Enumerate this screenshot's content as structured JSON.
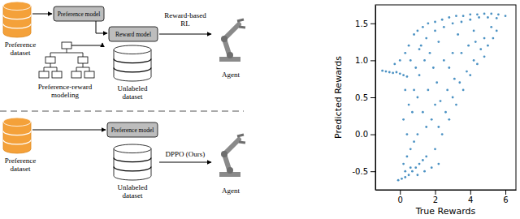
{
  "diagram": {
    "top": {
      "preference_dataset": [
        "Preference",
        "dataset"
      ],
      "preference_model": "Preference model",
      "reward_model": "Reward model",
      "modeling": [
        "Preference-reward",
        "modeling"
      ],
      "unlabeled_dataset": [
        "Unlabeled",
        "dataset"
      ],
      "method": [
        "Reward-based",
        "RL"
      ],
      "agent": "Agent"
    },
    "bottom": {
      "preference_dataset": [
        "Preference",
        "dataset"
      ],
      "preference_model": "Preference model",
      "unlabeled_dataset": [
        "Unlabeled",
        "dataset"
      ],
      "method": "DPPO (Ours)",
      "agent": "Agent"
    }
  },
  "chart_data": {
    "type": "scatter",
    "xlabel": "True Rewards",
    "ylabel": "Predicted Rewards",
    "color": "#1f77b4",
    "marker": "circle",
    "xlim": [
      -1.4,
      6.6
    ],
    "ylim": [
      -0.75,
      1.75
    ],
    "xticks": [
      0,
      2,
      4,
      6
    ],
    "yticks": [
      -0.5,
      {
        "value": 0,
        "label": "0.0"
      },
      0.5,
      {
        "value": 1,
        "label": "1.0"
      },
      1.5
    ],
    "x": [
      -1.0,
      -0.8,
      -0.6,
      -0.4,
      -0.2,
      0.0,
      0.2,
      0.4,
      -0.1,
      0.1,
      0.3,
      0.5,
      0.7,
      0.9,
      1.1,
      1.3,
      1.5,
      0.2,
      0.4,
      0.6,
      0.8,
      1.0,
      0.3,
      0.6,
      1.0,
      1.4,
      1.8,
      2.2,
      2.0,
      2.4,
      2.8,
      3.2,
      3.6,
      4.0,
      4.4,
      4.8,
      2.2,
      2.6,
      3.0,
      3.4,
      3.8,
      4.2,
      1.8,
      2.3,
      2.7,
      3.1,
      0.2,
      0.5,
      0.8,
      1.1,
      1.4,
      0.4,
      0.7,
      1.0,
      1.3,
      1.6,
      1.9,
      2.1,
      1.2,
      0.9,
      1.7,
      2.5,
      0.3,
      0.6,
      1.5,
      2.0,
      0.8,
      1.0,
      1.3,
      1.6,
      2.0,
      2.4,
      2.8,
      3.2,
      3.6,
      4.0,
      4.4,
      4.8,
      5.2,
      5.6,
      6.0,
      1.5,
      2.0,
      2.5,
      3.0,
      3.5,
      4.0,
      4.5,
      5.0,
      5.5,
      2.2,
      3.3,
      4.2,
      5.2,
      0.5,
      1.1,
      0.0,
      -0.3,
      0.3,
      4.6,
      5.0,
      5.3,
      3.9,
      4.3,
      3.5,
      5.5,
      2.8,
      3.0,
      4.8
    ],
    "y": [
      0.86,
      0.85,
      0.84,
      0.83,
      0.84,
      0.82,
      0.8,
      0.78,
      -0.62,
      -0.6,
      -0.58,
      -0.55,
      -0.5,
      -0.45,
      -0.4,
      -0.35,
      -0.3,
      -0.4,
      -0.3,
      -0.2,
      -0.1,
      0.0,
      -0.5,
      -0.45,
      -0.55,
      -0.5,
      -0.45,
      -0.4,
      -0.2,
      0.0,
      0.2,
      0.4,
      0.6,
      0.8,
      0.95,
      1.05,
      0.1,
      0.3,
      0.5,
      0.7,
      0.85,
      1.0,
      0.2,
      0.45,
      0.6,
      0.75,
      0.2,
      0.4,
      0.6,
      0.8,
      1.0,
      0.0,
      0.3,
      0.5,
      0.3,
      0.6,
      0.9,
      0.7,
      1.2,
      0.9,
      1.1,
      1.0,
      0.6,
      1.0,
      0.1,
      0.4,
      1.35,
      1.4,
      1.45,
      1.5,
      1.52,
      1.55,
      1.58,
      1.6,
      1.6,
      1.62,
      1.62,
      1.63,
      1.63,
      1.62,
      1.6,
      1.3,
      1.4,
      1.45,
      1.5,
      1.52,
      1.55,
      1.58,
      1.58,
      1.57,
      1.25,
      1.35,
      1.4,
      1.45,
      1.2,
      1.15,
      1.0,
      0.95,
      1.1,
      1.15,
      1.2,
      1.3,
      1.2,
      1.25,
      1.1,
      1.4,
      0.9,
      1.1,
      1.3
    ]
  }
}
